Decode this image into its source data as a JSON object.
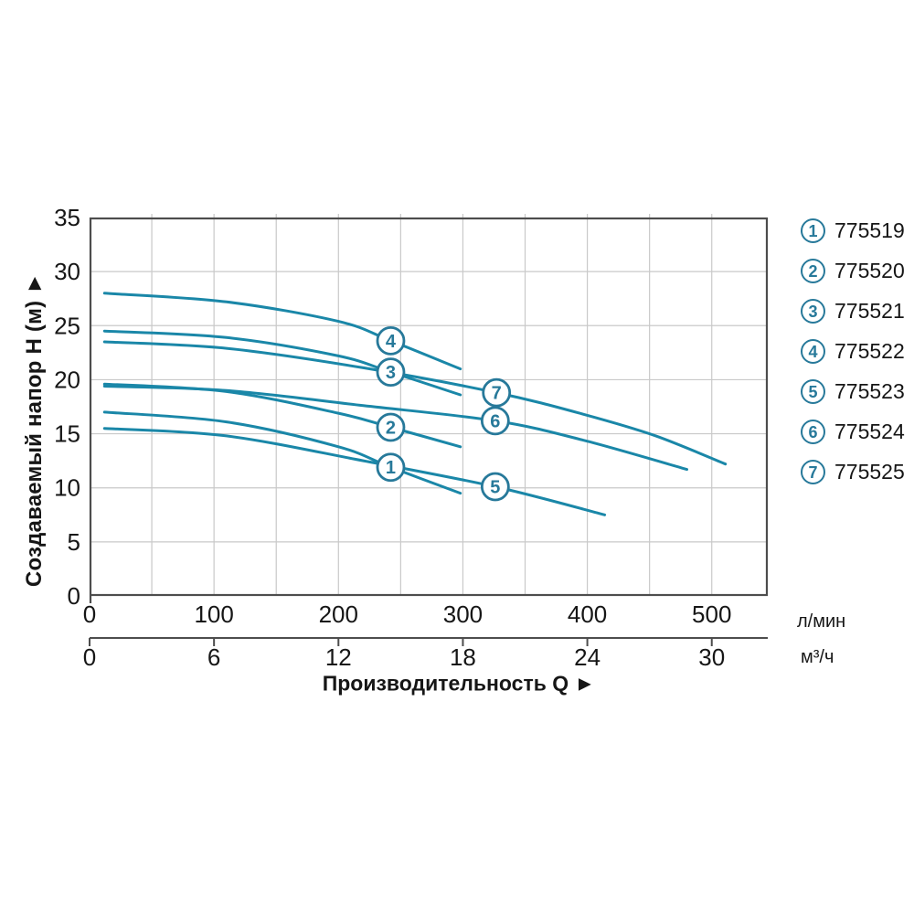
{
  "chart_data": {
    "type": "line",
    "xlabel": "Производительность Q ►",
    "ylabel": "Создаваемый напор H (м) ►",
    "grid": true,
    "legend_position": "right",
    "x_axis_primary": {
      "unit": "л/мин",
      "tick_labels": [
        0,
        100,
        200,
        300,
        400,
        500
      ],
      "range_lmin": [
        0,
        545
      ],
      "grid_step_lmin": 50
    },
    "x_axis_secondary": {
      "unit": "м³/ч",
      "tick_labels": [
        0,
        6,
        12,
        18,
        24,
        30
      ]
    },
    "y_axis": {
      "tick_labels": [
        0,
        5,
        10,
        15,
        20,
        25,
        30,
        35
      ],
      "range_m": [
        0,
        35
      ],
      "grid_step_m": 5
    },
    "series": [
      {
        "id": "1",
        "article": "775519",
        "points_q_h": [
          [
            12,
            17.0
          ],
          [
            110,
            16.1
          ],
          [
            200,
            13.8
          ],
          [
            242,
            11.9
          ],
          [
            298,
            9.5
          ]
        ],
        "label_at": [
          242,
          11.9
        ]
      },
      {
        "id": "2",
        "article": "775520",
        "points_q_h": [
          [
            12,
            19.6
          ],
          [
            110,
            18.9
          ],
          [
            200,
            16.9
          ],
          [
            242,
            15.6
          ],
          [
            298,
            13.8
          ]
        ],
        "label_at": [
          242,
          15.6
        ]
      },
      {
        "id": "3",
        "article": "775521",
        "points_q_h": [
          [
            12,
            24.5
          ],
          [
            110,
            23.9
          ],
          [
            200,
            22.2
          ],
          [
            242,
            20.7
          ],
          [
            298,
            18.6
          ]
        ],
        "label_at": [
          242,
          20.7
        ]
      },
      {
        "id": "4",
        "article": "775522",
        "points_q_h": [
          [
            12,
            28.0
          ],
          [
            110,
            27.2
          ],
          [
            200,
            25.4
          ],
          [
            242,
            23.6
          ],
          [
            298,
            21.0
          ]
        ],
        "label_at": [
          242,
          23.6
        ]
      },
      {
        "id": "5",
        "article": "775523",
        "points_q_h": [
          [
            12,
            15.5
          ],
          [
            110,
            14.8
          ],
          [
            220,
            12.5
          ],
          [
            326,
            10.1
          ],
          [
            414,
            7.5
          ]
        ],
        "label_at": [
          326,
          10.1
        ]
      },
      {
        "id": "6",
        "article": "775524",
        "points_q_h": [
          [
            12,
            19.4
          ],
          [
            110,
            19.0
          ],
          [
            220,
            17.6
          ],
          [
            326,
            16.2
          ],
          [
            397,
            14.4
          ],
          [
            480,
            11.7
          ]
        ],
        "label_at": [
          326,
          16.2
        ]
      },
      {
        "id": "7",
        "article": "775525",
        "points_q_h": [
          [
            12,
            23.5
          ],
          [
            110,
            22.9
          ],
          [
            220,
            21.1
          ],
          [
            327,
            18.8
          ],
          [
            397,
            16.8
          ],
          [
            455,
            14.8
          ],
          [
            511,
            12.2
          ]
        ],
        "label_at": [
          327,
          18.8
        ]
      }
    ],
    "colors": {
      "curve": "#1a87a8",
      "marker": "#27799a",
      "grid": "#c9c9c9",
      "axis": "#4d4d4d",
      "text": "#161616"
    }
  },
  "legend": {
    "items": [
      {
        "num": "1",
        "code": "775519"
      },
      {
        "num": "2",
        "code": "775520"
      },
      {
        "num": "3",
        "code": "775521"
      },
      {
        "num": "4",
        "code": "775522"
      },
      {
        "num": "5",
        "code": "775523"
      },
      {
        "num": "6",
        "code": "775524"
      },
      {
        "num": "7",
        "code": "775525"
      }
    ]
  }
}
